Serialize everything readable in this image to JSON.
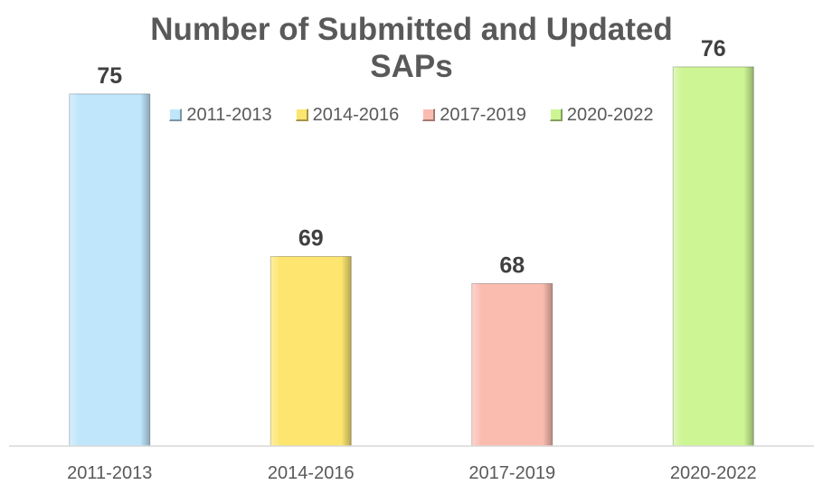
{
  "chart_data": {
    "type": "bar",
    "title_lines": [
      "Number of Submitted and Updated",
      "SAPs"
    ],
    "categories": [
      "2011-2013",
      "2014-2016",
      "2017-2019",
      "2020-2022"
    ],
    "values": [
      75,
      69,
      68,
      76
    ],
    "data_labels": [
      "75",
      "69",
      "68",
      "76"
    ],
    "legend": [
      "2011-2013",
      "2014-2016",
      "2017-2019",
      "2020-2022"
    ],
    "legend_placement": "top",
    "colors": [
      "#c0e6fb",
      "#fde56f",
      "#fbbcb0",
      "#cdf593"
    ],
    "grid": false,
    "xlabel": "",
    "ylabel": "",
    "ylim": [
      62,
      77
    ]
  }
}
